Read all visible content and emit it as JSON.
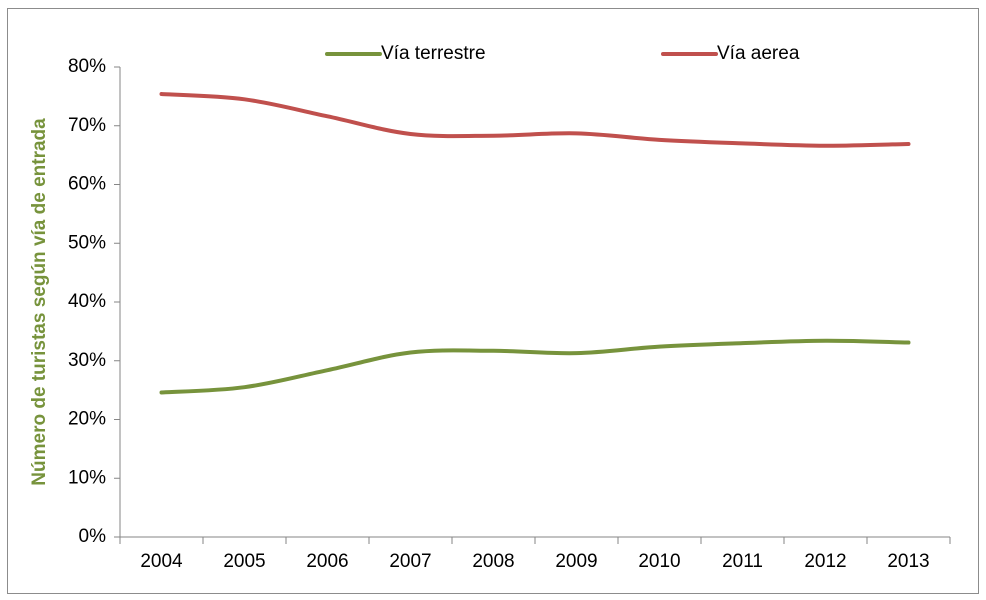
{
  "chart_data": {
    "type": "line",
    "x": [
      "2004",
      "2005",
      "2006",
      "2007",
      "2008",
      "2009",
      "2010",
      "2011",
      "2012",
      "2013"
    ],
    "series": [
      {
        "name": "Vía terrestre",
        "color": "#77933c",
        "values": [
          24.6,
          25.5,
          28.4,
          31.4,
          31.7,
          31.3,
          32.4,
          33.0,
          33.4,
          33.1
        ]
      },
      {
        "name": "Vía aerea",
        "color": "#c0504d",
        "values": [
          75.4,
          74.5,
          71.6,
          68.6,
          68.3,
          68.7,
          67.6,
          67.0,
          66.6,
          66.9
        ]
      }
    ],
    "ylabel": "Número de turistas según vía de entrada",
    "ylabel_color": "#77933c",
    "y_ticks": [
      "0%",
      "10%",
      "20%",
      "30%",
      "40%",
      "50%",
      "60%",
      "70%",
      "80%"
    ],
    "ylim": [
      0,
      80
    ],
    "grid": false,
    "legend_position": "top"
  }
}
